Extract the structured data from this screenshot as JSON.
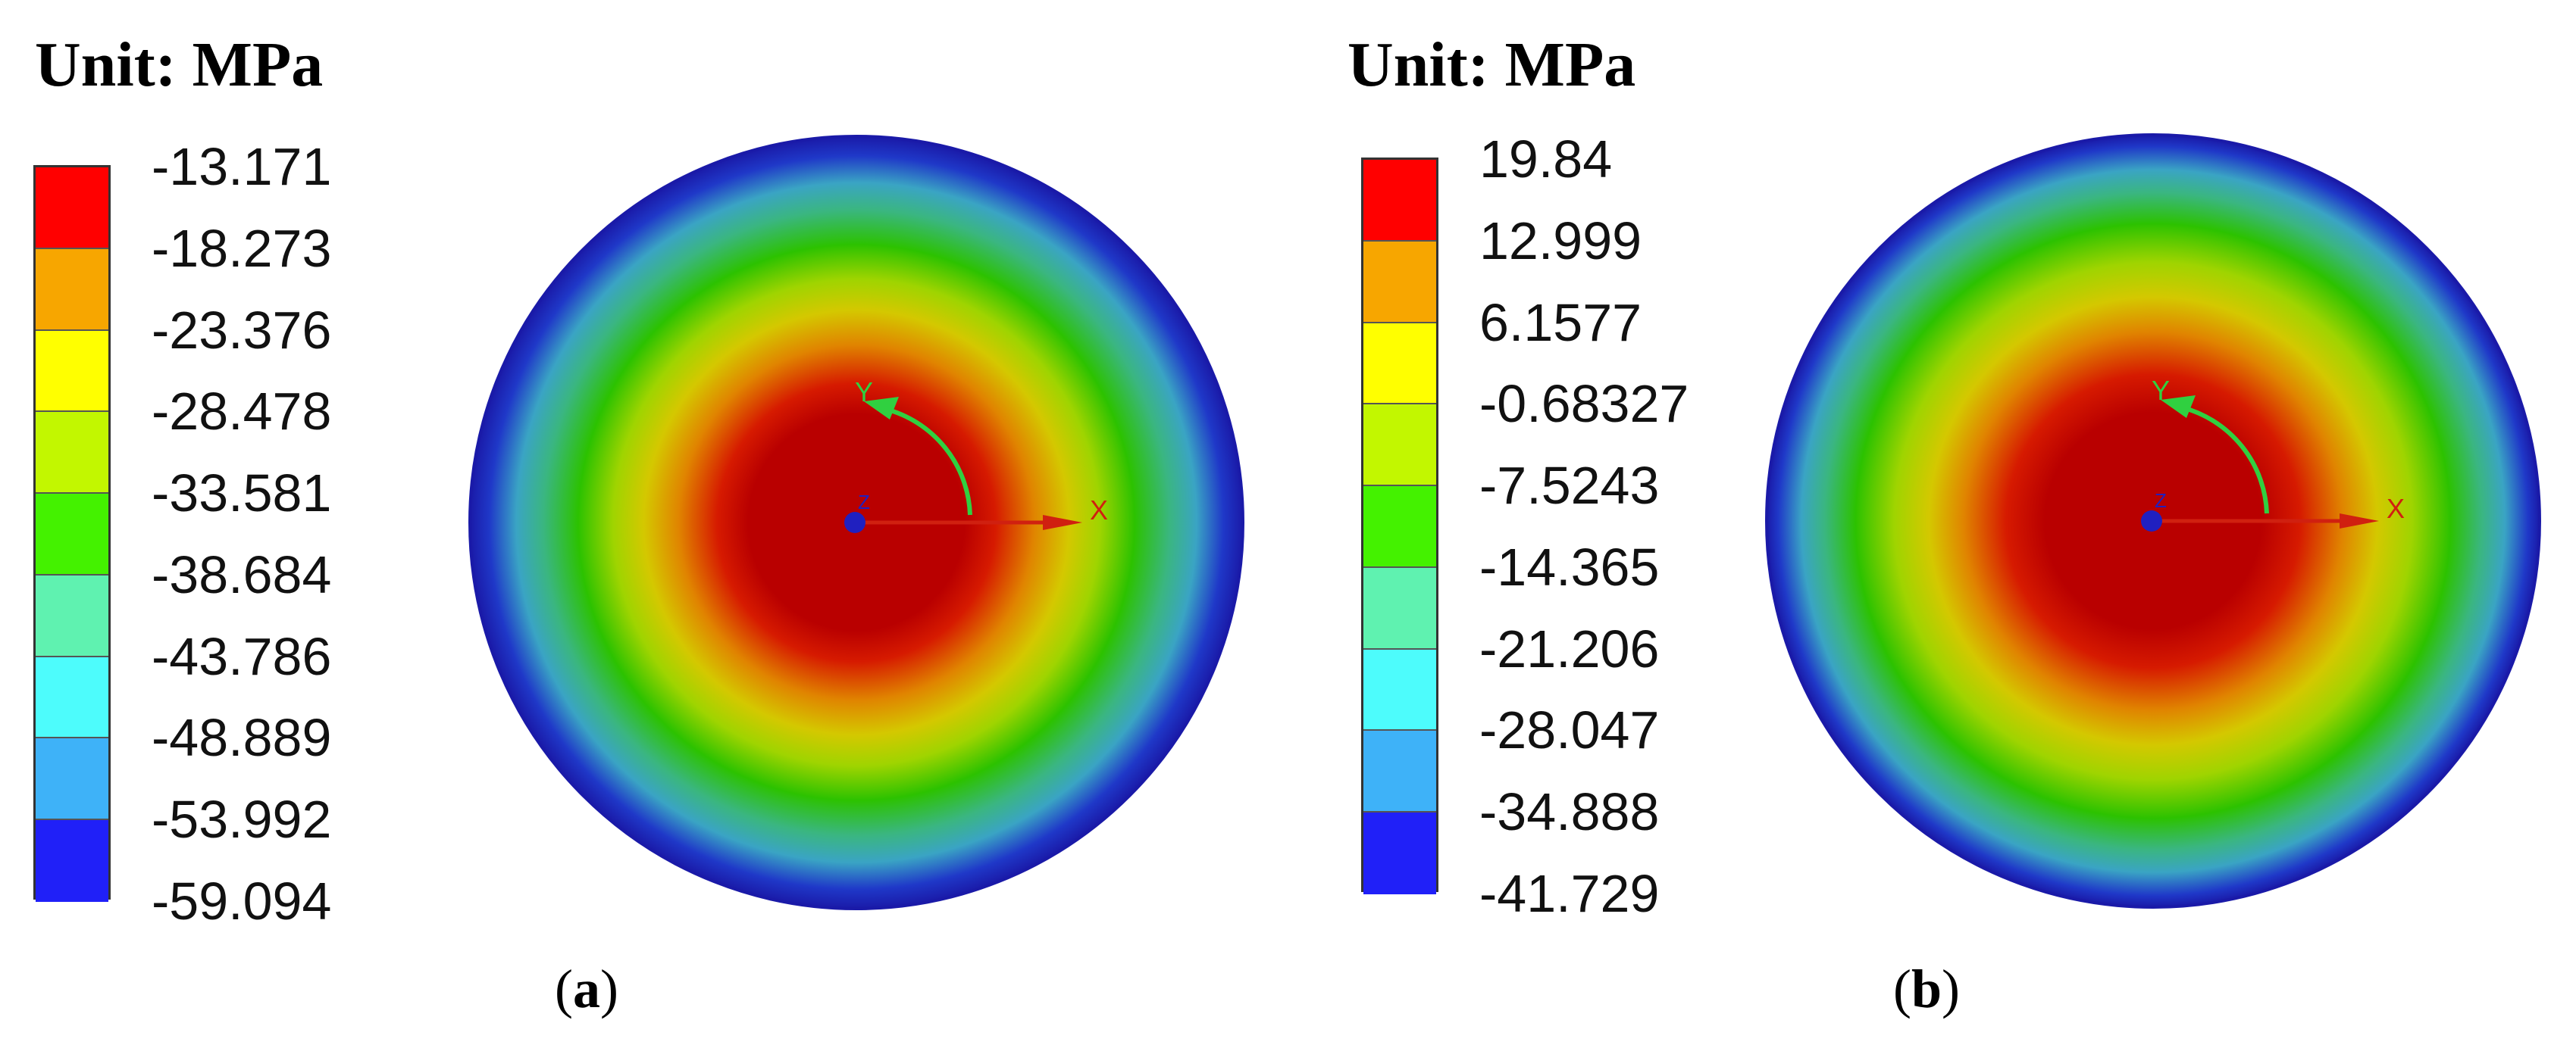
{
  "panels": [
    {
      "id": "a",
      "unit_title": "Unit: MPa",
      "caption_letter": "a",
      "legend_values": [
        "-13.171",
        "-18.273",
        "-23.376",
        "-28.478",
        "-33.581",
        "-38.684",
        "-43.786",
        "-48.889",
        "-53.992",
        "-59.094"
      ],
      "axis_labels": {
        "x": "X",
        "y": "Y",
        "z": "Z"
      }
    },
    {
      "id": "b",
      "unit_title": "Unit: MPa",
      "caption_letter": "b",
      "legend_values": [
        "19.84",
        "12.999",
        "6.1577",
        "-0.68327",
        "-7.5243",
        "-14.365",
        "-21.206",
        "-28.047",
        "-34.888",
        "-41.729"
      ],
      "axis_labels": {
        "x": "X",
        "y": "Y",
        "z": "Z"
      }
    }
  ],
  "legend_colors": [
    "#ff0000",
    "#f7a600",
    "#ffff00",
    "#c2f700",
    "#44f200",
    "#5ff2b0",
    "#4dfcfc",
    "#3eb2f8",
    "#2020f8"
  ],
  "contour_colors": {
    "center": "#b90000",
    "red": "#d61a00",
    "orange": "#e08400",
    "yellow": "#d4c800",
    "yellowgreen": "#9fd400",
    "green": "#2cc200",
    "teal": "#3ab680",
    "cyan": "#3aa4c4",
    "blue": "#1f38c8",
    "rim": "#1a1aa8"
  },
  "axis_colors": {
    "x": "#d02010",
    "y": "#30d040",
    "z": "#2020c0"
  }
}
